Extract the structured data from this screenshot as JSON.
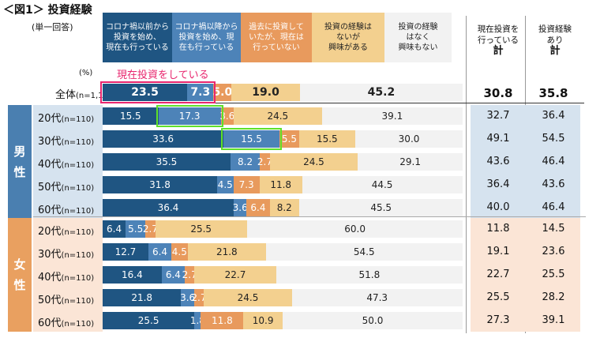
{
  "title": "＜図1＞ 投資経験",
  "subtitle": "(単一回答)",
  "unit": "(%)",
  "annotation": "現在投資をしている",
  "colors": [
    "#1f5582",
    "#4d83b8",
    "#e89a5d",
    "#f3d08f",
    "#f2f2f2"
  ],
  "text_colors": [
    "#fff",
    "#fff",
    "#fff",
    "#222",
    "#222"
  ],
  "chart_data": {
    "type": "bar",
    "stacked": true,
    "orientation": "horizontal",
    "xlim": [
      0,
      100
    ],
    "legend": [
      "コロナ禍以前から\n投資を始め、\n現在も行っている",
      "コロナ禍以降から\n投資を始め、現\n在も行っている",
      "過去に投資して\nいたが、現在は\n行っていない",
      "投資の経験は\nないが\n興味がある",
      "投資の経験\nはなく\n興味もない"
    ],
    "summary_headers": [
      {
        "line": "現在投資を\n行っている",
        "total": "計"
      },
      {
        "line": "投資経験\nあり",
        "total": "計"
      }
    ],
    "groups": [
      {
        "name": "",
        "rows": [
          {
            "label": "全体",
            "n": "(n=1,100)",
            "values": [
              23.5,
              7.3,
              5.0,
              19.0,
              45.2
            ],
            "summary": [
              "30.8",
              "35.8"
            ],
            "highlight": [
              0,
              1
            ],
            "highlight_color": "#e8266e"
          }
        ]
      },
      {
        "name": "男\n性",
        "rows": [
          {
            "label": "20代",
            "n": "(n=110)",
            "values": [
              15.5,
              17.3,
              3.6,
              24.5,
              39.1
            ],
            "summary": [
              "32.7",
              "36.4"
            ],
            "highlight": [
              1
            ],
            "highlight_color": "#5fe02a"
          },
          {
            "label": "30代",
            "n": "(n=110)",
            "values": [
              33.6,
              15.5,
              5.5,
              15.5,
              30.0
            ],
            "summary": [
              "49.1",
              "54.5"
            ],
            "highlight": [
              1
            ],
            "highlight_color": "#5fe02a"
          },
          {
            "label": "40代",
            "n": "(n=110)",
            "values": [
              35.5,
              8.2,
              2.7,
              24.5,
              29.1
            ],
            "summary": [
              "43.6",
              "46.4"
            ]
          },
          {
            "label": "50代",
            "n": "(n=110)",
            "values": [
              31.8,
              4.5,
              7.3,
              11.8,
              44.5
            ],
            "summary": [
              "36.4",
              "43.6"
            ]
          },
          {
            "label": "60代",
            "n": "(n=110)",
            "values": [
              36.4,
              3.6,
              6.4,
              8.2,
              45.5
            ],
            "summary": [
              "40.0",
              "46.4"
            ]
          }
        ]
      },
      {
        "name": "女\n性",
        "rows": [
          {
            "label": "20代",
            "n": "(n=110)",
            "values": [
              6.4,
              5.5,
              2.7,
              25.5,
              60.0
            ],
            "summary": [
              "11.8",
              "14.5"
            ]
          },
          {
            "label": "30代",
            "n": "(n=110)",
            "values": [
              12.7,
              6.4,
              4.5,
              21.8,
              54.5
            ],
            "summary": [
              "19.1",
              "23.6"
            ]
          },
          {
            "label": "40代",
            "n": "(n=110)",
            "values": [
              16.4,
              6.4,
              2.7,
              22.7,
              51.8
            ],
            "summary": [
              "22.7",
              "25.5"
            ]
          },
          {
            "label": "50代",
            "n": "(n=110)",
            "values": [
              21.8,
              3.6,
              2.7,
              24.5,
              47.3
            ],
            "summary": [
              "25.5",
              "28.2"
            ]
          },
          {
            "label": "60代",
            "n": "(n=110)",
            "values": [
              25.5,
              1.8,
              11.8,
              10.9,
              50.0
            ],
            "summary": [
              "27.3",
              "39.1"
            ]
          }
        ]
      }
    ]
  }
}
